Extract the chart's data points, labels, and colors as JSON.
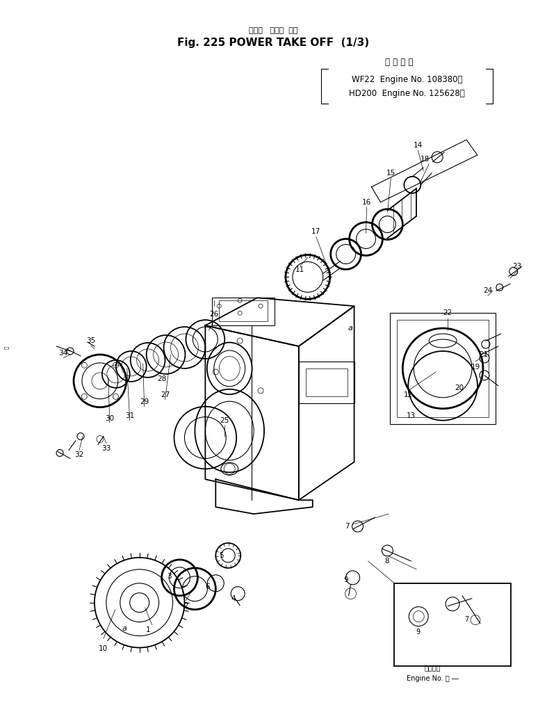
{
  "bg_color": "#ffffff",
  "line_color": "#000000",
  "title_jp": "パワー   テーク  オフ",
  "title_en": "Fig. 225 POWER TAKE OFF  (1/3)",
  "applic_jp": "適 用 号 機",
  "applic_l1": "WF22  Engine No. 108380～",
  "applic_l2": "HD200  Engine No. 125628～",
  "inset_jp": "適用号機",
  "inset_en": "Engine No. ･ ―",
  "fig_width": 7.87,
  "fig_height": 10.14,
  "dpi": 100
}
